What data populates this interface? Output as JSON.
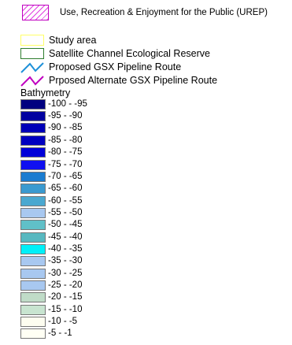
{
  "legend": {
    "top_item": {
      "label": "Use, Recreation & Enjoyment for the Public (UREP)",
      "color": "#e040e0"
    },
    "features": [
      {
        "label": "Study area",
        "symbol": "rect-outline",
        "color": "#ffff66"
      },
      {
        "label": "Satellite Channel Ecological Reserve",
        "symbol": "rect-outline",
        "color": "#2e7d2e"
      },
      {
        "label": "Proposed GSX Pipeline Route",
        "symbol": "zigzag-line",
        "color": "#1e90d8"
      },
      {
        "label": "Prposed Alternate GSX Pipeline Route",
        "symbol": "zigzag-line",
        "color": "#c000c0"
      }
    ],
    "bathymetry": {
      "title": "Bathymetry",
      "classes": [
        {
          "label": "-100 - -95",
          "color": "#000080"
        },
        {
          "label": "-95 - -90",
          "color": "#0000a0"
        },
        {
          "label": "-90 - -85",
          "color": "#0000b8"
        },
        {
          "label": "-85 - -80",
          "color": "#0000c0"
        },
        {
          "label": "-80 - -75",
          "color": "#0000d8"
        },
        {
          "label": "-75 - -70",
          "color": "#1010f0"
        },
        {
          "label": "-70 - -65",
          "color": "#1a7cd0"
        },
        {
          "label": "-65 - -60",
          "color": "#3a9ad0"
        },
        {
          "label": "-60 - -55",
          "color": "#4aa8d0"
        },
        {
          "label": "-55 - -50",
          "color": "#a8c8f0"
        },
        {
          "label": "-50 - -45",
          "color": "#60c0c8"
        },
        {
          "label": "-45 - -40",
          "color": "#58b8c0"
        },
        {
          "label": "-40 - -35",
          "color": "#00f0f8"
        },
        {
          "label": "-35 - -30",
          "color": "#a8c8f0"
        },
        {
          "label": "-30 - -25",
          "color": "#a8c8f0"
        },
        {
          "label": "-25 - -20",
          "color": "#a8c8f0"
        },
        {
          "label": "-20 - -15",
          "color": "#c0dcc8"
        },
        {
          "label": "-15 - -10",
          "color": "#c8e4d0"
        },
        {
          "label": "-10 - -5",
          "color": "#fdfdf0"
        },
        {
          "label": "-5 - -1",
          "color": "#fffff4"
        }
      ]
    }
  }
}
